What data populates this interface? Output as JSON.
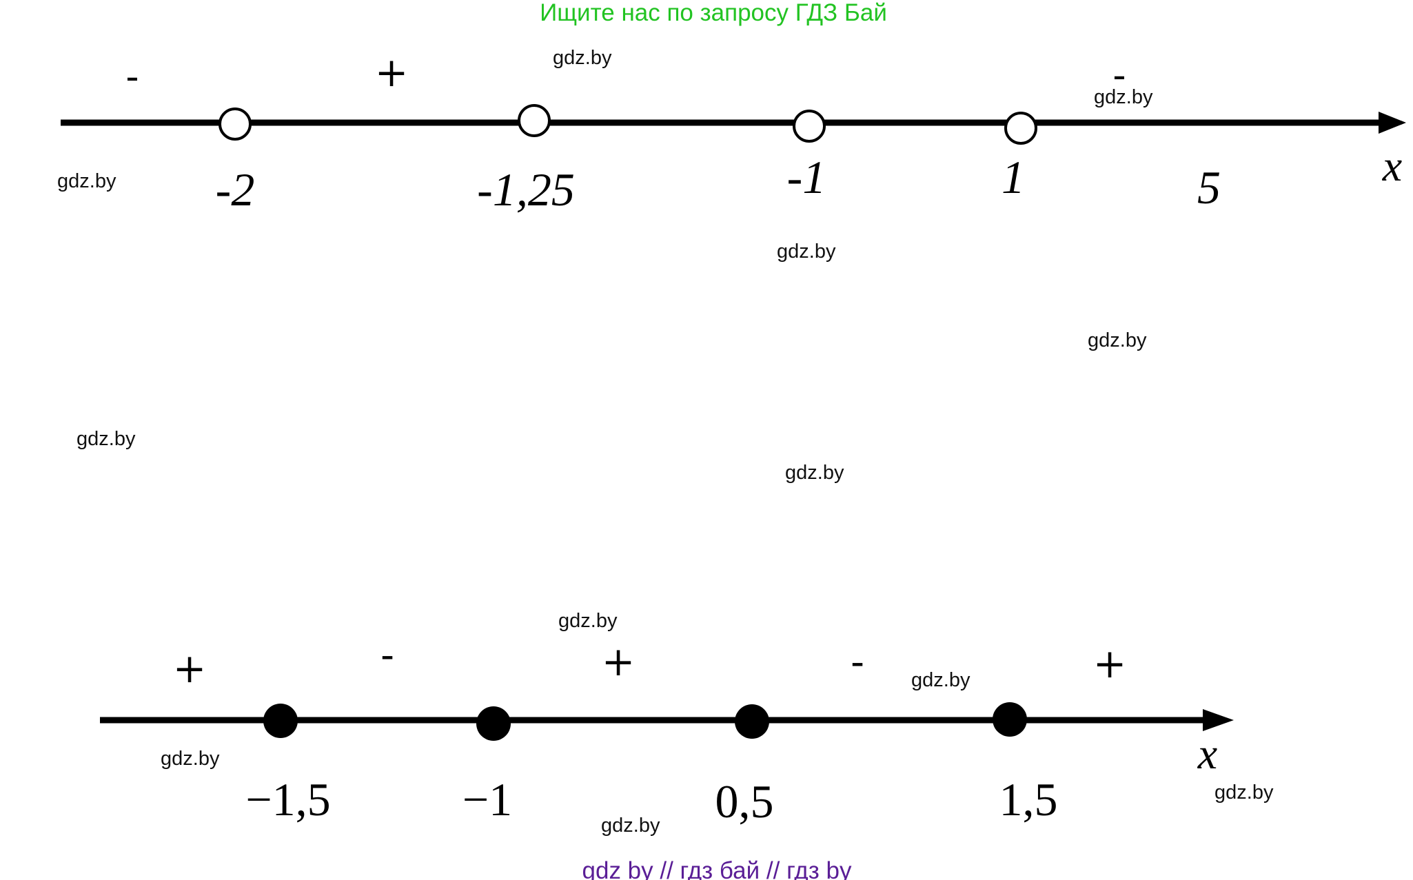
{
  "header": {
    "text": "Ищите нас по запросу ГДЗ Бай",
    "color": "#22c322"
  },
  "footer": {
    "text": "gdz by  //  гдз бай  //  гдз by",
    "color": "#5a1e96"
  },
  "watermark": {
    "text": "gdz.by"
  },
  "line1": {
    "axis_label": "x",
    "points": [
      {
        "label": "-2",
        "style": "open"
      },
      {
        "label": "-1,25",
        "style": "open"
      },
      {
        "label": "-1",
        "style": "open"
      },
      {
        "label": "1",
        "style": "open"
      }
    ],
    "extra_label": "5",
    "signs": [
      "-",
      "+",
      "-"
    ]
  },
  "line2": {
    "axis_label": "x",
    "points": [
      {
        "label": "−1,5",
        "style": "filled"
      },
      {
        "label": "−1",
        "style": "filled"
      },
      {
        "label": "0,5",
        "style": "filled"
      },
      {
        "label": "1,5",
        "style": "filled"
      }
    ],
    "signs": [
      "+",
      "-",
      "+",
      "-",
      "+"
    ]
  }
}
